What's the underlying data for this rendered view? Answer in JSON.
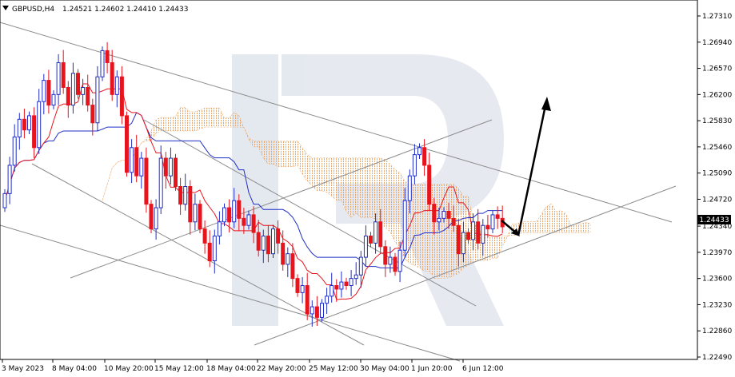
{
  "header": {
    "symbol": "GBPUSD,H4",
    "ohlc": "1.24521 1.24602 1.24410 1.24433",
    "menu_icon": "triangle-down-icon"
  },
  "price_label": "1.24433",
  "colors": {
    "bull": "#1f2ec7",
    "bear": "#e8141d",
    "kijun": "#1f2ec7",
    "tenkan": "#e8141d",
    "cloud": "#e8a060",
    "cloud_dark": "#b0b0c8",
    "trendline": "#8c8c8c",
    "arrow": "#000000"
  },
  "chart_data": {
    "type": "candlestick",
    "indicator": "ichimoku",
    "ylim": [
      1.2249,
      1.2731
    ],
    "y_ticks": [
      "1.27310",
      "1.26940",
      "1.26570",
      "1.26200",
      "1.25830",
      "1.25460",
      "1.25090",
      "1.24720",
      "1.24340",
      "1.23970",
      "1.23600",
      "1.23230",
      "1.22860",
      "1.22490"
    ],
    "x_ticks": [
      "3 May 2023",
      "8 May 04:00",
      "10 May 20:00",
      "15 May 12:00",
      "18 May 04:00",
      "22 May 20:00",
      "25 May 12:00",
      "30 May 04:00",
      "1 Jun 20:00",
      "6 Jun 12:00"
    ],
    "last_price": 1.24433,
    "close": [
      1.248,
      1.252,
      1.256,
      1.2585,
      1.257,
      1.259,
      1.2545,
      1.261,
      1.264,
      1.2605,
      1.262,
      1.2665,
      1.263,
      1.2605,
      1.265,
      1.262,
      1.263,
      1.2605,
      1.258,
      1.2645,
      1.2682,
      1.2665,
      1.262,
      1.2645,
      1.259,
      1.251,
      1.2545,
      1.2505,
      1.253,
      1.2465,
      1.243,
      1.246,
      1.253,
      1.2505,
      1.253,
      1.249,
      1.2465,
      1.249,
      1.244,
      1.2465,
      1.243,
      1.241,
      1.2385,
      1.242,
      1.244,
      1.246,
      1.244,
      1.247,
      1.2445,
      1.2435,
      1.245,
      1.2425,
      1.24,
      1.242,
      1.2395,
      1.243,
      1.241,
      1.238,
      1.2395,
      1.236,
      1.234,
      1.235,
      1.231,
      1.232,
      1.2305,
      1.2325,
      1.2335,
      1.235,
      1.2345,
      1.2355,
      1.235,
      1.236,
      1.2365,
      1.239,
      1.242,
      1.241,
      1.244,
      1.2405,
      1.238,
      1.239,
      1.237,
      1.24,
      1.247,
      1.2505,
      1.2535,
      1.2545,
      1.252,
      1.2465,
      1.244,
      1.2445,
      1.2455,
      1.2445,
      1.2435,
      1.2395,
      1.2425,
      1.2415,
      1.244,
      1.241,
      1.2435,
      1.243,
      1.245,
      1.2445,
      1.2433
    ]
  },
  "watermark": "R",
  "arrow_icon": "arrow-icon"
}
